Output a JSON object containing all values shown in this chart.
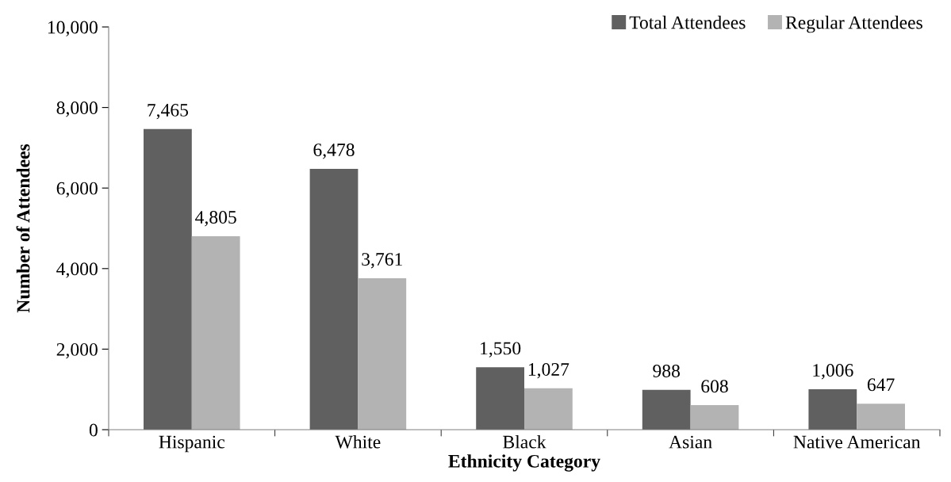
{
  "chart_data": {
    "type": "bar",
    "xlabel": "Ethnicity Category",
    "ylabel": "Number of Attendees",
    "categories": [
      "Hispanic",
      "White",
      "Black",
      "Asian",
      "Native American"
    ],
    "series": [
      {
        "name": "Total Attendees",
        "color": "#606060",
        "values": [
          7465,
          6478,
          1550,
          988,
          1006
        ],
        "value_labels": [
          "7,465",
          "6,478",
          "1,550",
          "988",
          "1,006"
        ]
      },
      {
        "name": "Regular Attendees",
        "color": "#b3b3b3",
        "values": [
          4805,
          3761,
          1027,
          608,
          647
        ],
        "value_labels": [
          "4,805",
          "3,761",
          "1,027",
          "608",
          "647"
        ]
      }
    ],
    "ylim": [
      0,
      10000
    ],
    "yticks": [
      {
        "value": 0,
        "label": "0"
      },
      {
        "value": 2000,
        "label": "2,000"
      },
      {
        "value": 4000,
        "label": "4,000"
      },
      {
        "value": 6000,
        "label": "6,000"
      },
      {
        "value": 8000,
        "label": "8,000"
      },
      {
        "value": 10000,
        "label": "10,000"
      }
    ],
    "grid": false,
    "legend": "top right"
  }
}
